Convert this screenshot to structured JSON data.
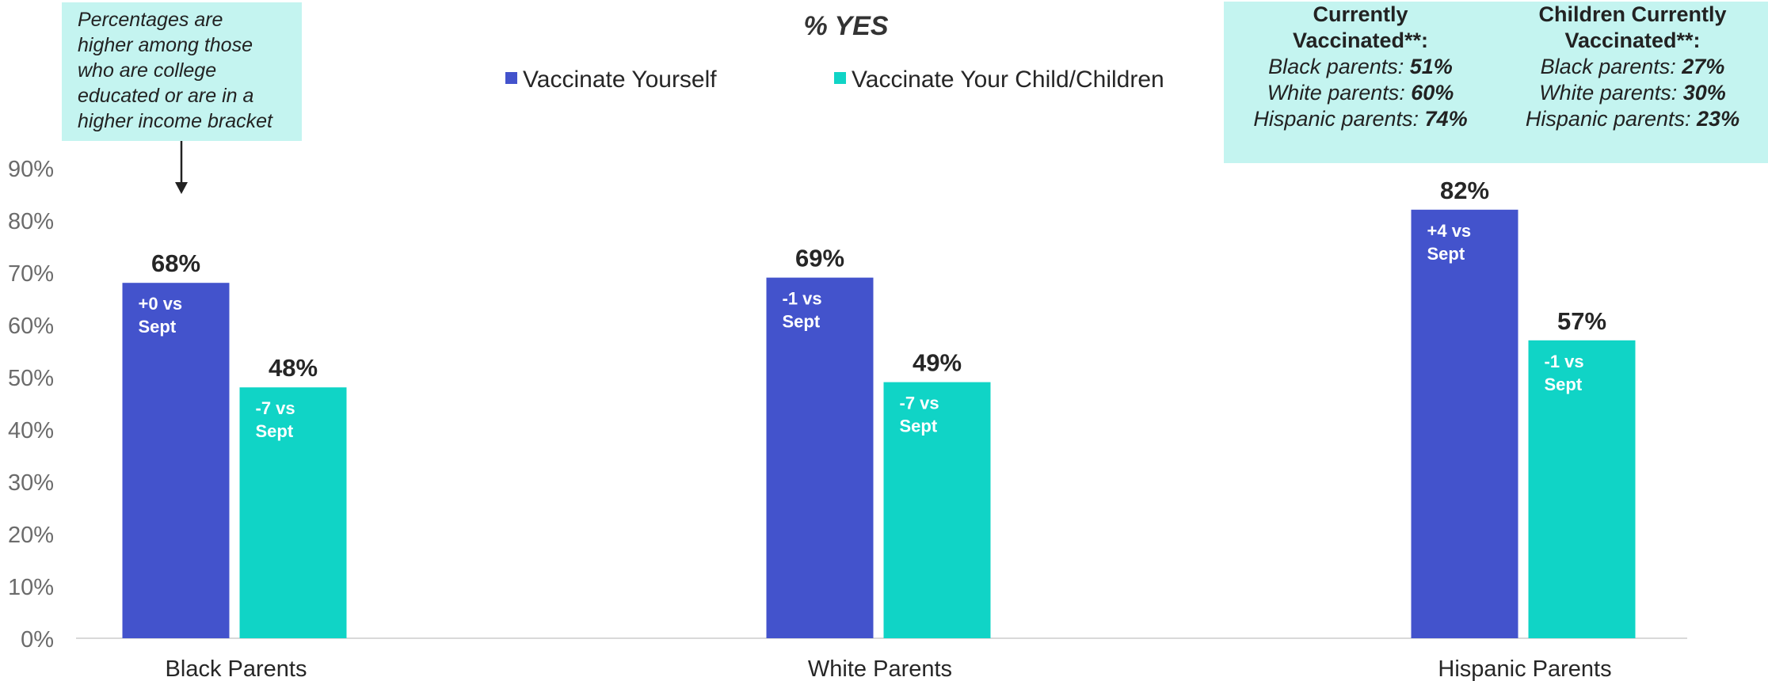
{
  "chart_data": {
    "type": "bar",
    "title": "% YES",
    "categories": [
      "Black Parents",
      "White Parents",
      "Hispanic Parents"
    ],
    "series": [
      {
        "name": "Vaccinate Yourself",
        "color": "#4353cc",
        "values": [
          68,
          69,
          82
        ],
        "value_labels": [
          "68%",
          "69%",
          "82%"
        ],
        "change_labels": [
          [
            "+0 vs",
            "Sept"
          ],
          [
            "-1 vs",
            "Sept"
          ],
          [
            "+4 vs",
            "Sept"
          ]
        ]
      },
      {
        "name": "Vaccinate Your Child/Children",
        "color": "#10d4c6",
        "values": [
          48,
          49,
          57
        ],
        "value_labels": [
          "48%",
          "49%",
          "57%"
        ],
        "change_labels": [
          [
            "-7 vs",
            "Sept"
          ],
          [
            "-7 vs",
            "Sept"
          ],
          [
            "-1 vs",
            "Sept"
          ]
        ]
      }
    ],
    "ylim": [
      0,
      90
    ],
    "yticks": [
      "0%",
      "10%",
      "20%",
      "30%",
      "40%",
      "50%",
      "60%",
      "70%",
      "80%",
      "90%"
    ],
    "legend_position": "top-center",
    "grid": false
  },
  "callouts": {
    "note": [
      "Percentages are",
      "higher among those",
      "who are college",
      "educated or are in a",
      "higher income bracket"
    ],
    "vaccinated": [
      {
        "header": [
          "Currently",
          "Vaccinated**:"
        ],
        "lines": [
          {
            "label": "Black parents: ",
            "value": "51%"
          },
          {
            "label": "White parents: ",
            "value": "60%"
          },
          {
            "label": "Hispanic parents: ",
            "value": "74%"
          }
        ]
      },
      {
        "header": [
          "Children Currently",
          "Vaccinated**:"
        ],
        "lines": [
          {
            "label": "Black parents: ",
            "value": "27%"
          },
          {
            "label": "White parents: ",
            "value": "30%"
          },
          {
            "label": "Hispanic parents: ",
            "value": "23%"
          }
        ]
      }
    ]
  }
}
